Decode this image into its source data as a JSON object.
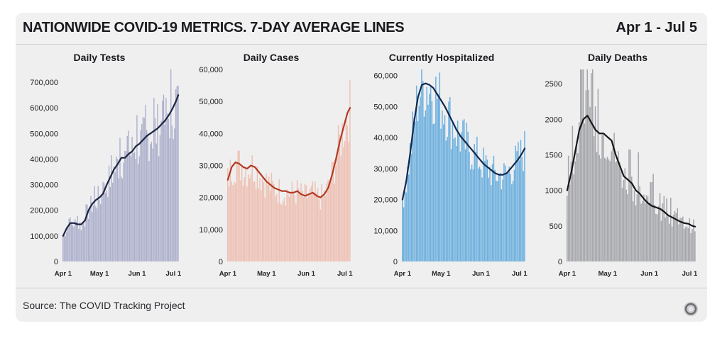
{
  "header": {
    "title": "NATIONWIDE COVID-19 METRICS. 7-DAY AVERAGE LINES",
    "date_range": "Apr 1 - Jul 5"
  },
  "footer": {
    "source": "Source: The COVID Tracking Project"
  },
  "chart_data": [
    {
      "type": "bar",
      "title": "Daily Tests",
      "bar_color": "#a5a9c8",
      "line_color": "#1b2540",
      "ylim": [
        0,
        750000
      ],
      "yticks": [
        0,
        100000,
        200000,
        300000,
        400000,
        500000,
        600000,
        700000
      ],
      "ytick_labels": [
        "0",
        "100,000",
        "200,000",
        "300,000",
        "400,000",
        "500,000",
        "600,000",
        "700,000"
      ],
      "xtick_labels": [
        "Apr 1",
        "May 1",
        "Jun 1",
        "Jul 1"
      ],
      "xtick_days": [
        0,
        30,
        61,
        91
      ],
      "days": 96,
      "series": [
        {
          "name": "7-day average",
          "x": [
            0,
            3,
            6,
            9,
            12,
            15,
            18,
            21,
            24,
            27,
            30,
            33,
            36,
            39,
            42,
            45,
            48,
            51,
            54,
            57,
            60,
            63,
            66,
            69,
            72,
            75,
            78,
            81,
            84,
            87,
            90,
            93,
            95
          ],
          "values": [
            100000,
            130000,
            150000,
            150000,
            145000,
            145000,
            160000,
            200000,
            225000,
            240000,
            250000,
            265000,
            300000,
            330000,
            360000,
            380000,
            405000,
            405000,
            420000,
            430000,
            450000,
            460000,
            475000,
            490000,
            500000,
            510000,
            520000,
            535000,
            550000,
            570000,
            595000,
            625000,
            650000
          ]
        }
      ]
    },
    {
      "type": "bar",
      "title": "Daily Cases",
      "bar_color": "#edbbad",
      "line_color": "#b33a22",
      "ylim": [
        0,
        60000
      ],
      "yticks": [
        0,
        10000,
        20000,
        30000,
        40000,
        50000,
        60000
      ],
      "ytick_labels": [
        "0",
        "10,000",
        "20,000",
        "30,000",
        "40,000",
        "50,000",
        "60,000"
      ],
      "xtick_labels": [
        "Apr 1",
        "May 1",
        "Jun 1",
        "Jul 1"
      ],
      "xtick_days": [
        0,
        30,
        61,
        91
      ],
      "days": 96,
      "series": [
        {
          "name": "7-day average",
          "x": [
            0,
            3,
            6,
            9,
            12,
            15,
            18,
            21,
            24,
            27,
            30,
            33,
            36,
            39,
            42,
            45,
            48,
            51,
            54,
            57,
            60,
            63,
            66,
            69,
            72,
            75,
            78,
            81,
            84,
            87,
            90,
            93,
            95
          ],
          "values": [
            25500,
            29500,
            31000,
            30500,
            29500,
            29000,
            30000,
            29500,
            28000,
            26500,
            25000,
            24000,
            23000,
            22500,
            22000,
            22000,
            21500,
            21500,
            22000,
            21000,
            20500,
            21000,
            21500,
            20500,
            20000,
            21000,
            23000,
            27000,
            32000,
            37500,
            42000,
            46500,
            48000
          ]
        }
      ]
    },
    {
      "type": "bar",
      "title": "Currently Hospitalized",
      "bar_color": "#5ea9dc",
      "line_color": "#13294f",
      "ylim": [
        0,
        62000
      ],
      "yticks": [
        0,
        10000,
        20000,
        30000,
        40000,
        50000,
        60000
      ],
      "ytick_labels": [
        "0",
        "10,000",
        "20,000",
        "30,000",
        "40,000",
        "50,000",
        "60,000"
      ],
      "xtick_labels": [
        "Apr 1",
        "May 1",
        "Jun 1",
        "Jul 1"
      ],
      "xtick_days": [
        0,
        30,
        61,
        91
      ],
      "days": 96,
      "series": [
        {
          "name": "7-day average",
          "x": [
            0,
            3,
            6,
            9,
            12,
            15,
            18,
            21,
            24,
            27,
            30,
            33,
            36,
            39,
            42,
            45,
            48,
            51,
            54,
            57,
            60,
            63,
            66,
            69,
            72,
            75,
            78,
            81,
            84,
            87,
            90,
            93,
            95
          ],
          "values": [
            20000,
            26000,
            35000,
            45000,
            53000,
            57000,
            57500,
            57000,
            56000,
            54000,
            52000,
            50000,
            47500,
            45000,
            42500,
            40500,
            39000,
            37500,
            36000,
            34500,
            33000,
            31500,
            30500,
            29500,
            28500,
            28000,
            28000,
            28500,
            30000,
            31500,
            33000,
            35000,
            36500
          ]
        }
      ]
    },
    {
      "type": "bar",
      "title": "Daily Deaths",
      "bar_color": "#9d9ea3",
      "line_color": "#161618",
      "ylim": [
        0,
        2700
      ],
      "yticks": [
        0,
        500,
        1000,
        1500,
        2000,
        2500
      ],
      "ytick_labels": [
        "0",
        "500",
        "1000",
        "1500",
        "2000",
        "2500"
      ],
      "xtick_labels": [
        "Apr 1",
        "May 1",
        "Jun 1",
        "Jul 1"
      ],
      "xtick_days": [
        0,
        30,
        61,
        91
      ],
      "days": 96,
      "series": [
        {
          "name": "7-day average",
          "x": [
            0,
            3,
            6,
            9,
            12,
            15,
            18,
            21,
            24,
            27,
            30,
            33,
            36,
            39,
            42,
            45,
            48,
            51,
            54,
            57,
            60,
            63,
            66,
            69,
            72,
            75,
            78,
            81,
            84,
            87,
            90,
            93,
            95
          ],
          "values": [
            1000,
            1250,
            1550,
            1850,
            2000,
            2050,
            1950,
            1850,
            1800,
            1800,
            1750,
            1700,
            1500,
            1350,
            1200,
            1150,
            1100,
            1000,
            950,
            880,
            820,
            780,
            760,
            740,
            700,
            650,
            620,
            590,
            560,
            540,
            530,
            500,
            490
          ]
        }
      ]
    }
  ]
}
